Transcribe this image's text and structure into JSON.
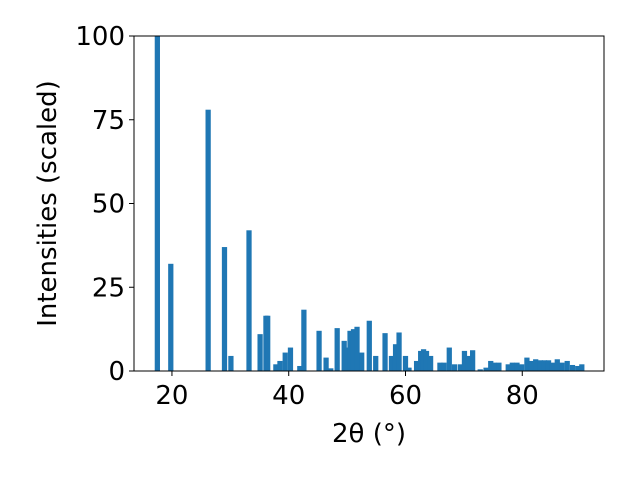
{
  "chart_data": {
    "type": "bar",
    "title": "",
    "xlabel": "2θ (°)",
    "ylabel": "Intensities (scaled)",
    "xlim": [
      13.5,
      94.0
    ],
    "ylim": [
      0,
      100
    ],
    "xticks": [
      20,
      40,
      60,
      80
    ],
    "yticks": [
      0,
      25,
      50,
      75,
      100
    ],
    "grid": false,
    "bar_color": "#1f77b4",
    "bar_width": 0.9,
    "x": [
      17.5,
      19.8,
      26.2,
      29.0,
      30.1,
      33.2,
      35.1,
      36.1,
      36.4,
      37.8,
      38.5,
      39.4,
      40.3,
      41.9,
      42.6,
      45.2,
      46.4,
      47.2,
      48.3,
      49.5,
      50.0,
      50.5,
      51.1,
      51.7,
      52.5,
      53.8,
      54.9,
      56.5,
      57.6,
      58.3,
      58.9,
      60.0,
      60.6,
      61.9,
      62.6,
      63.1,
      63.6,
      64.3,
      65.9,
      66.6,
      67.5,
      68.4,
      69.4,
      70.1,
      70.7,
      71.5,
      72.8,
      73.8,
      74.6,
      75.2,
      76.0,
      77.6,
      78.3,
      79.1,
      79.9,
      80.8,
      81.5,
      82.3,
      83.1,
      83.8,
      84.5,
      85.2,
      86.0,
      86.8,
      87.7,
      88.6,
      89.5,
      90.2
    ],
    "values": [
      100,
      32,
      78,
      37,
      4.5,
      42,
      11,
      16.5,
      16.5,
      2,
      3,
      5.5,
      7,
      1.5,
      18.3,
      12,
      4,
      0.8,
      12.8,
      9,
      7,
      12,
      12.5,
      13.2,
      5.5,
      15,
      4.5,
      11.3,
      4.5,
      8,
      11.5,
      4.5,
      1,
      3,
      6,
      6.5,
      6,
      4.5,
      2.5,
      2.5,
      7,
      2,
      2,
      6,
      4.5,
      6.2,
      0.5,
      1,
      3,
      2.5,
      2.5,
      2,
      2.5,
      2.5,
      2,
      4,
      3,
      3.5,
      3.2,
      3.2,
      3.2,
      2.5,
      3.5,
      2.5,
      3,
      1.8,
      1.5,
      2
    ]
  }
}
